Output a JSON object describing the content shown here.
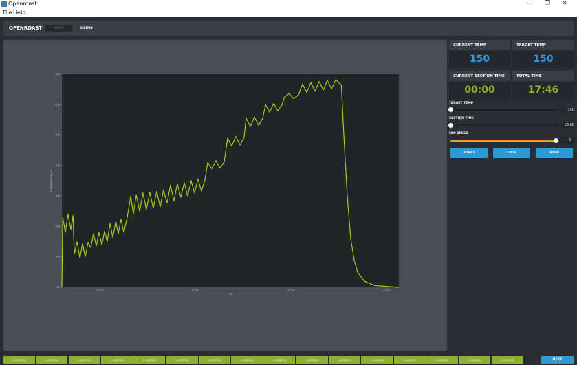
{
  "window": {
    "title": "Openroast",
    "menu": [
      "File",
      "Help"
    ]
  },
  "header": {
    "app_name": "OPENROAST",
    "tabs": [
      "ROAST",
      "RECIPES"
    ]
  },
  "chart_data": {
    "type": "line",
    "x_label": "TIME",
    "y_label": "TEMPERATURE (°F)",
    "xlim": [
      0.52,
      18.15
    ],
    "ylim": [
      150,
      500
    ],
    "xticks": [
      {
        "value": 2.5,
        "label": "02:30"
      },
      {
        "value": 7.5,
        "label": "07:30"
      },
      {
        "value": 12.5,
        "label": "12:30"
      },
      {
        "value": 17.5,
        "label": "17:30"
      }
    ],
    "yticks": [
      150,
      200,
      250,
      300,
      350,
      400,
      450,
      500
    ],
    "series": [
      {
        "color": "#a6cc1e",
        "x": [
          0.52,
          0.56,
          0.7,
          0.84,
          0.99,
          1.1,
          1.17,
          1.31,
          1.46,
          1.6,
          1.74,
          1.89,
          2.03,
          2.17,
          2.32,
          2.46,
          2.61,
          2.75,
          2.89,
          3.04,
          3.18,
          3.34,
          3.47,
          3.61,
          3.76,
          3.94,
          4.12,
          4.26,
          4.41,
          4.59,
          4.76,
          4.94,
          5.12,
          5.3,
          5.48,
          5.66,
          5.84,
          6.02,
          6.2,
          6.38,
          6.56,
          6.74,
          6.92,
          7.1,
          7.28,
          7.46,
          7.64,
          7.82,
          8.0,
          8.15,
          8.36,
          8.58,
          8.79,
          9.01,
          9.19,
          9.4,
          9.62,
          9.84,
          10.05,
          10.16,
          10.38,
          10.59,
          10.81,
          11.03,
          11.17,
          11.39,
          11.6,
          11.82,
          12.04,
          12.15,
          12.4,
          12.65,
          12.9,
          13.11,
          13.33,
          13.55,
          13.76,
          13.98,
          14.2,
          14.41,
          14.63,
          14.85,
          15.14,
          15.27,
          15.45,
          15.63,
          15.81,
          15.99,
          16.35,
          16.89,
          18.15
        ],
        "values": [
          150,
          265,
          240,
          270,
          245,
          268,
          205,
          225,
          198,
          222,
          200,
          224,
          215,
          238,
          218,
          240,
          220,
          242,
          225,
          255,
          232,
          258,
          238,
          262,
          240,
          265,
          300,
          270,
          302,
          275,
          305,
          278,
          306,
          280,
          308,
          282,
          310,
          288,
          318,
          292,
          320,
          298,
          322,
          300,
          325,
          305,
          328,
          308,
          326,
          355,
          345,
          358,
          346,
          356,
          395,
          382,
          398,
          384,
          396,
          428,
          414,
          430,
          416,
          428,
          450,
          438,
          452,
          440,
          450,
          462,
          468,
          460,
          466,
          484,
          470,
          486,
          472,
          488,
          474,
          490,
          476,
          491,
          482,
          400,
          300,
          230,
          195,
          175,
          160,
          153,
          150
        ]
      }
    ]
  },
  "readouts": [
    {
      "label": "CURRENT TEMP",
      "value": "150"
    },
    {
      "label": "TARGET TEMP",
      "value": "150"
    },
    {
      "label": "CURRENT SECTION TIME",
      "value": "00:00"
    },
    {
      "label": "TOTAL TIME",
      "value": "17:46"
    }
  ],
  "sliders": [
    {
      "label": "TARGET TEMP",
      "value": "150"
    },
    {
      "label": "SECTION TIME",
      "value": "00:00"
    },
    {
      "label": "FAN SPEED",
      "value": "9"
    }
  ],
  "buttons": [
    "ROAST",
    "COOL",
    "STOP"
  ],
  "recipe_steps": [
    "0:20@250",
    "1:00@300",
    "1:00@330",
    "1:00@340",
    "1:00@380",
    "1:00@390",
    "1:00@380",
    "1:00@410",
    "1:00@430",
    "1:00@390",
    "1:00@420",
    "1:00@460",
    "1:00@470",
    "1:00@480",
    "1:00@490",
    "2:00@100"
  ],
  "next_button": "NEXT"
}
